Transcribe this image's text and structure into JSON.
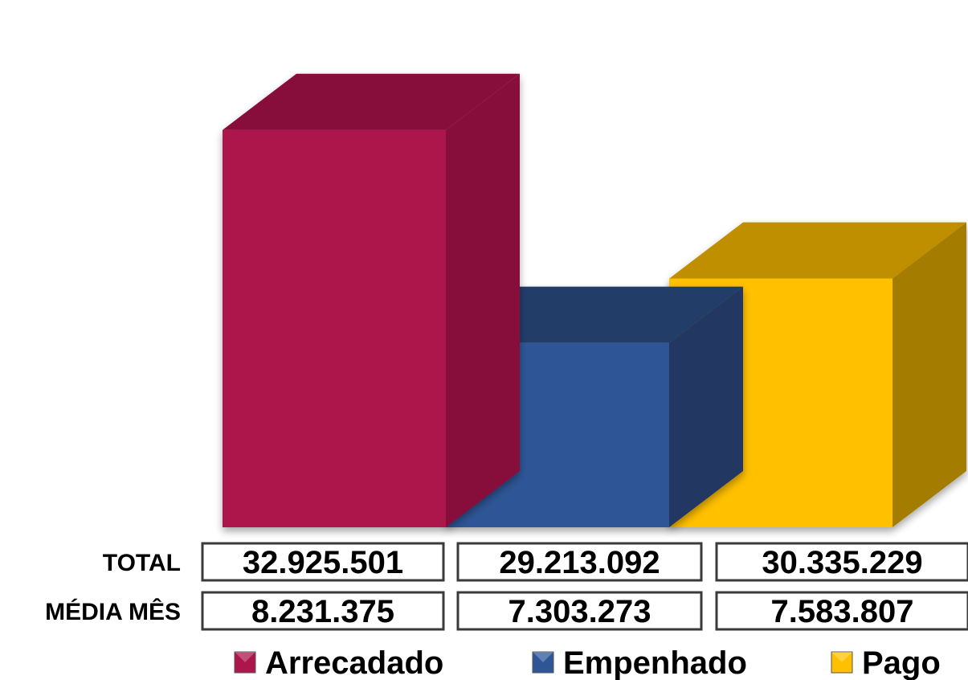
{
  "chart_data": {
    "type": "bar",
    "categories": [
      "Arrecadado",
      "Empenhado",
      "Pago"
    ],
    "values": [
      32925501,
      29213092,
      30335229
    ],
    "series": [
      {
        "name": "Arrecadado",
        "color": "#AD164C",
        "top_color": "#870F3A",
        "side_color": "#870F3A"
      },
      {
        "name": "Empenhado",
        "color": "#2E5696",
        "top_color": "#243C68",
        "side_color": "#223963"
      },
      {
        "name": "Pago",
        "color": "#FFC000",
        "top_color": "#C08F00",
        "side_color": "#A47C00"
      }
    ],
    "ylim": [
      26000000,
      34000000
    ],
    "three_d": true,
    "grid": false,
    "legend_position": "bottom",
    "table": {
      "rows": [
        {
          "label": "TOTAL",
          "values": [
            "32.925.501",
            "29.213.092",
            "30.335.229"
          ]
        },
        {
          "label": "MÉDIA MÊS",
          "values": [
            "8.231.375",
            "7.303.273",
            "7.583.807"
          ]
        }
      ]
    }
  }
}
